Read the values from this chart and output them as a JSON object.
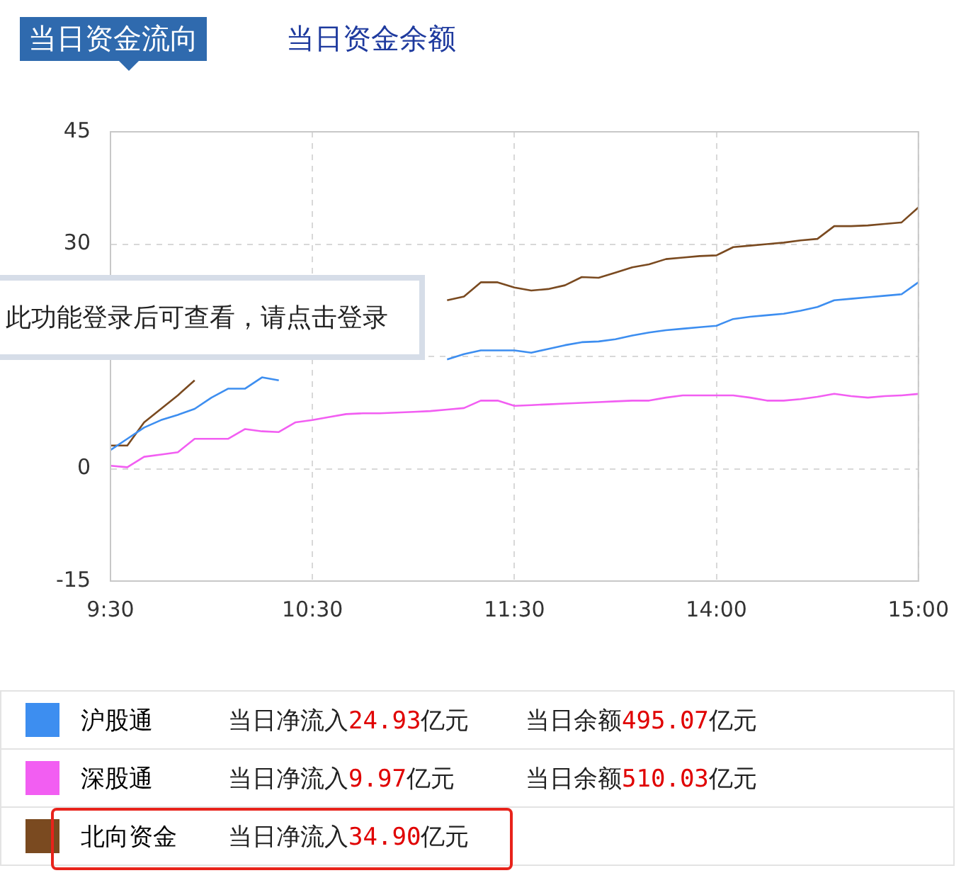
{
  "chart_data": {
    "type": "line",
    "title": "当日资金流向",
    "subtitle": "当日资金余额",
    "categories": [
      "9:30",
      null,
      null,
      null,
      null,
      null,
      null,
      null,
      null,
      null,
      null,
      null,
      "10:30",
      null,
      null,
      null,
      null,
      null,
      null,
      null,
      null,
      null,
      null,
      null,
      "11:30",
      null,
      null,
      null,
      null,
      null,
      null,
      null,
      null,
      null,
      null,
      null,
      "14:00",
      null,
      null,
      null,
      null,
      null,
      null,
      null,
      null,
      null,
      null,
      null,
      "15:00"
    ],
    "ylim": [
      -15,
      45
    ],
    "yticks": [
      -15,
      0,
      {
        "value": 15,
        "label": null
      },
      30,
      45
    ],
    "grid": true,
    "legend": "bottom",
    "marker": "none",
    "line_style": "solid",
    "series": [
      {
        "name": "沪股通",
        "color": "#3d8ef0",
        "values": [
          2.5,
          4.0,
          5.5,
          6.5,
          7.2,
          8,
          9.5,
          10.7,
          10.7,
          12.2,
          11.8,
          null,
          null,
          null,
          null,
          null,
          null,
          null,
          null,
          null,
          14.6,
          15.3,
          15.8,
          15.8,
          15.8,
          15.5,
          16,
          16.5,
          16.9,
          17,
          17.3,
          17.8,
          18.2,
          18.5,
          18.7,
          18.9,
          19.1,
          20,
          20.3,
          20.5,
          20.7,
          21.1,
          21.6,
          22.5,
          22.7,
          22.9,
          23.1,
          23.3,
          24.9
        ]
      },
      {
        "name": "深股通",
        "color": "#f25ef2",
        "values": [
          0.4,
          0.2,
          1.6,
          1.9,
          2.2,
          4,
          4,
          4,
          5.3,
          5,
          4.9,
          6.2,
          6.5,
          6.9,
          7.3,
          7.4,
          7.4,
          7.5,
          7.6,
          7.7,
          7.9,
          8.1,
          9.1,
          9.1,
          8.4,
          8.5,
          8.6,
          8.7,
          8.8,
          8.9,
          9,
          9.1,
          9.1,
          9.5,
          9.8,
          9.8,
          9.8,
          9.8,
          9.5,
          9.1,
          9.1,
          9.3,
          9.6,
          10,
          9.7,
          9.5,
          9.7,
          9.8,
          10
        ]
      },
      {
        "name": "北向资金",
        "color": "#7a4a20",
        "values": [
          3.1,
          3.1,
          6.2,
          8,
          9.8,
          11.8,
          null,
          null,
          null,
          null,
          null,
          null,
          null,
          null,
          null,
          null,
          null,
          null,
          null,
          null,
          22.5,
          23,
          24.9,
          24.9,
          24.2,
          23.8,
          24,
          24.5,
          25.6,
          25.5,
          26.2,
          26.9,
          27.3,
          28,
          28.2,
          28.4,
          28.5,
          29.6,
          29.8,
          30,
          30.2,
          30.5,
          30.7,
          32.4,
          32.4,
          32.5,
          32.7,
          32.9,
          34.9
        ]
      }
    ],
    "annotations": [
      "当日净流入24.93亿元",
      "当日余额495.07亿元",
      "当日净流入9.97亿元",
      "当日余额510.03亿元",
      "当日净流入34.90亿元",
      "此功能登录后可查看，请点击登录"
    ]
  }
}
